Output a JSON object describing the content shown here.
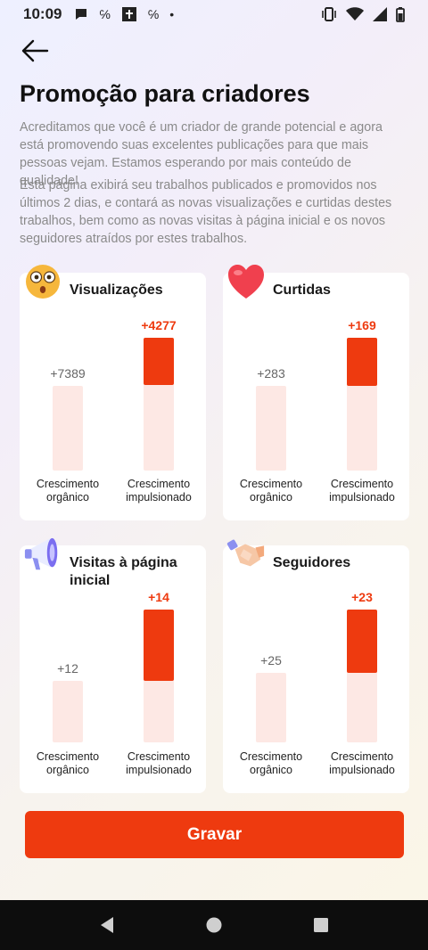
{
  "status_bar": {
    "time": "10:09",
    "left_icons": [
      "chat-icon",
      "notification-icon",
      "calendar-icon",
      "notification-icon",
      "dot-icon"
    ],
    "right_icons": [
      "vibrate-icon",
      "wifi-icon",
      "signal-icon",
      "battery-icon"
    ]
  },
  "page": {
    "title": "Promoção para criadores",
    "intro1": "Acreditamos que você é um criador de grande potencial e agora está promovendo suas excelentes publicações para que mais pessoas vejam. Estamos esperando por mais conteúdo de qualidade!",
    "intro2": "Esta página exibirá seu trabalhos publicados e promovidos nos últimos 2 dias, e contará as novas visualizações e curtidas destes trabalhos, bem como as novas visitas à página inicial e os novos seguidores atraídos por estes trabalhos."
  },
  "labels": {
    "organic": "Crescimento orgânico",
    "boosted": "Crescimento impulsionado"
  },
  "cards": [
    {
      "title": "Visualizações",
      "icon": "surprised-face-icon",
      "organic": "+7389",
      "boosted": "+4277",
      "boost_ratio": 0.58
    },
    {
      "title": "Curtidas",
      "icon": "heart-icon",
      "organic": "+283",
      "boosted": "+169",
      "boost_ratio": 0.6
    },
    {
      "title": "Visitas à página inicial",
      "icon": "megaphone-icon",
      "organic": "+12",
      "boosted": "+14",
      "boost_ratio": 1.17
    },
    {
      "title": "Seguidores",
      "icon": "handshake-icon",
      "organic": "+25",
      "boosted": "+23",
      "boost_ratio": 0.92
    }
  ],
  "actions": {
    "save_label": "Gravar"
  },
  "colors": {
    "accent": "#ee3a0f",
    "bar_light": "#fde8e4"
  }
}
